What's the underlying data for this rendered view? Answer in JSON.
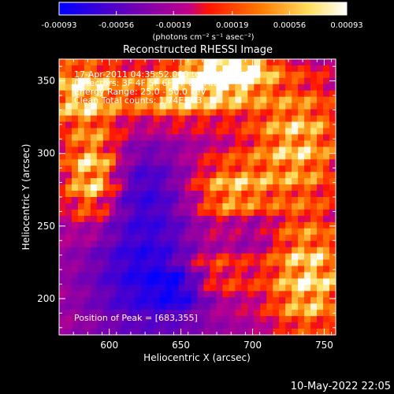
{
  "chart_data": {
    "type": "heatmap",
    "title": "Reconstructed RHESSI Image",
    "xlabel": "Heliocentric X (arcsec)",
    "ylabel": "Heliocentric Y (arcsec)",
    "xlim": [
      565,
      758
    ],
    "ylim": [
      175,
      365
    ],
    "x_ticks": [
      600,
      650,
      700,
      750
    ],
    "y_ticks": [
      200,
      250,
      300,
      350
    ],
    "colorbar": {
      "min": -0.00093,
      "max": 0.00093,
      "tick_values": [
        -0.00093,
        -0.00056,
        -0.00019,
        0.00019,
        0.00056,
        0.00093
      ],
      "tick_labels": [
        "-0.00093",
        "-0.00056",
        "-0.00019",
        "0.00019",
        "0.00056",
        "0.00093"
      ],
      "units_label": "(photons cm⁻² s⁻¹ asec⁻²)",
      "colors": [
        "#0000ff",
        "#7a00a8",
        "#ff2000",
        "#ff9000",
        "#ffffd0",
        "#ffffff"
      ]
    },
    "annotations": [
      "17-Apr-2011 04:35:52.000 to 04:40:00.000",
      "Detectors: 3F 4F 5F 6F 7F 8F, Att 0",
      "Energy Range: 25.0 - 50.0 keV",
      "Clean    Total counts: 1.74E+03"
    ],
    "peak_label": "Position of Peak = [683,355]",
    "peak": [
      683,
      355
    ]
  },
  "footer": {
    "timestamp": "10-May-2022 22:05"
  }
}
